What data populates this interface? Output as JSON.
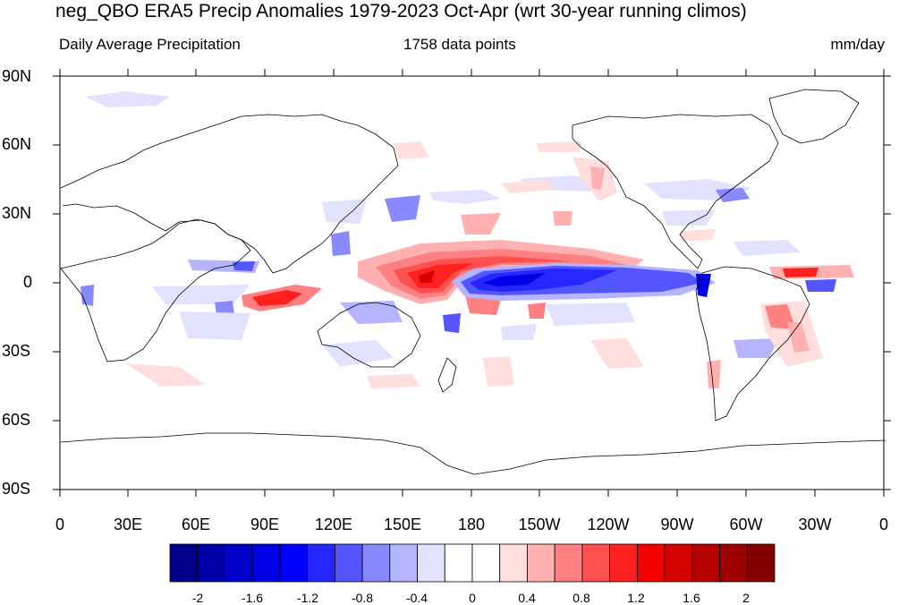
{
  "title": "neg_QBO ERA5 Precip Anomalies 1979-2023 Oct-Apr (wrt 30-year running climos)",
  "left_string": "Daily Average Precipitation",
  "center_string": "1758 data points",
  "right_string": "mm/day",
  "lat_labels": [
    "90N",
    "60N",
    "30N",
    "0",
    "30S",
    "60S",
    "90S"
  ],
  "lon_labels": [
    "0",
    "30E",
    "60E",
    "90E",
    "120E",
    "150E",
    "180",
    "150W",
    "120W",
    "90W",
    "60W",
    "30W",
    "0"
  ],
  "colorbar": {
    "labels": [
      "-2",
      "-1.6",
      "-1.2",
      "-0.8",
      "-0.4",
      "0",
      "0.4",
      "0.8",
      "1.2",
      "1.6",
      "2"
    ],
    "colors": [
      "#00008b",
      "#0000a6",
      "#0000c8",
      "#0000e6",
      "#0000ff",
      "#2626ff",
      "#5555ff",
      "#8888ff",
      "#b4b4ff",
      "#e2e2ff",
      "#ffffff",
      "#ffffff",
      "#ffdede",
      "#ffb0b0",
      "#ff8080",
      "#ff5050",
      "#ff2020",
      "#f50000",
      "#d50000",
      "#b80000",
      "#9c0000",
      "#840000"
    ]
  },
  "map": {
    "projection": "cylindrical-equidistant",
    "center_lon": 180,
    "field": "precipitation anomaly"
  }
}
